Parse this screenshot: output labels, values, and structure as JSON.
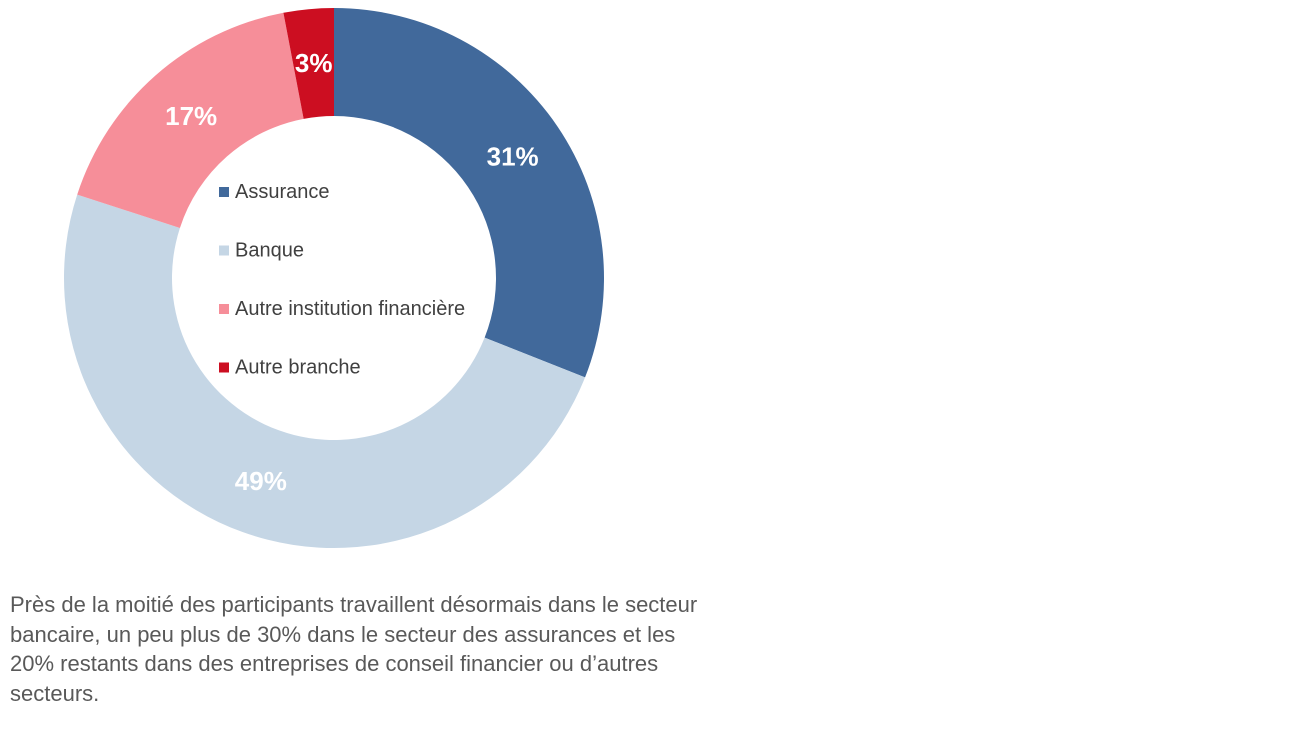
{
  "chart_data": {
    "type": "pie",
    "subtype": "donut",
    "categories": [
      "Assurance",
      "Banque",
      "Autre institution financière",
      "Autre branche"
    ],
    "values": [
      31,
      49,
      17,
      3
    ],
    "unit": "%",
    "data_labels": [
      "31%",
      "49%",
      "17%",
      "3%"
    ],
    "colors": [
      "#41699B",
      "#C5D6E5",
      "#F68E99",
      "#CC0E21"
    ],
    "legend_position": "center"
  },
  "caption": {
    "text": "Près de la moitié des participants travaillent désormais dans le secteur bancaire, un peu plus de 30% dans le secteur des assurances et les 20% restants dans des entreprises de conseil financier ou d’autres secteurs."
  }
}
